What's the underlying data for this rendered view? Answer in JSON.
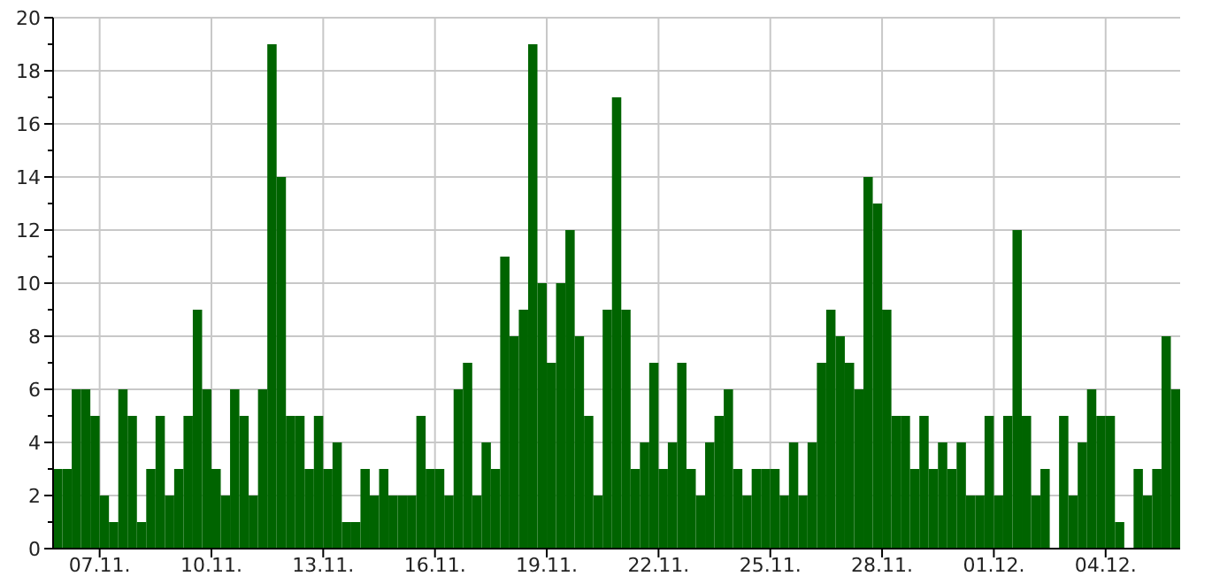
{
  "chart_data": {
    "type": "bar",
    "color": "#006400",
    "grid": true,
    "xlim": [
      "--11-05T18:00",
      "--12-06T00:00"
    ],
    "xticks": [
      {
        "value": "--11-07",
        "label": "07.11."
      },
      {
        "value": "--11-10",
        "label": "10.11."
      },
      {
        "value": "--11-13",
        "label": "13.11."
      },
      {
        "value": "--11-16",
        "label": "16.11."
      },
      {
        "value": "--11-19",
        "label": "19.11."
      },
      {
        "value": "--11-22",
        "label": "22.11."
      },
      {
        "value": "--11-25",
        "label": "25.11."
      },
      {
        "value": "--11-28",
        "label": "28.11."
      },
      {
        "value": "--12-01",
        "label": "01.12."
      },
      {
        "value": "--12-04",
        "label": "04.12."
      }
    ],
    "ylim": [
      0,
      20
    ],
    "yticks": [
      0,
      {
        "value": 1,
        "label": null
      },
      2,
      {
        "value": 3,
        "label": null
      },
      4,
      {
        "value": 5,
        "label": null
      },
      6,
      {
        "value": 7,
        "label": null
      },
      8,
      {
        "value": 9,
        "label": null
      },
      10,
      {
        "value": 11,
        "label": null
      },
      12,
      {
        "value": 13,
        "label": null
      },
      14,
      {
        "value": 15,
        "label": null
      },
      16,
      {
        "value": 17,
        "label": null
      },
      18,
      {
        "value": 19,
        "label": null
      },
      20
    ],
    "x": [
      "--11-05T18:00",
      "--11-06T00:00",
      "--11-06T06:00",
      "--11-06T12:00",
      "--11-06T18:00",
      "--11-07T00:00",
      "--11-07T06:00",
      "--11-07T12:00",
      "--11-07T18:00",
      "--11-08T00:00",
      "--11-08T06:00",
      "--11-08T12:00",
      "--11-08T18:00",
      "--11-09T00:00",
      "--11-09T06:00",
      "--11-09T12:00",
      "--11-09T18:00",
      "--11-10T00:00",
      "--11-10T06:00",
      "--11-10T12:00",
      "--11-10T18:00",
      "--11-11T00:00",
      "--11-11T06:00",
      "--11-11T12:00",
      "--11-11T18:00",
      "--11-12T00:00",
      "--11-12T06:00",
      "--11-12T12:00",
      "--11-12T18:00",
      "--11-13T00:00",
      "--11-13T06:00",
      "--11-13T12:00",
      "--11-13T18:00",
      "--11-14T00:00",
      "--11-14T06:00",
      "--11-14T12:00",
      "--11-14T18:00",
      "--11-15T00:00",
      "--11-15T06:00",
      "--11-15T12:00",
      "--11-15T18:00",
      "--11-16T00:00",
      "--11-16T06:00",
      "--11-16T12:00",
      "--11-16T18:00",
      "--11-17T00:00",
      "--11-17T06:00",
      "--11-17T12:00",
      "--11-17T18:00",
      "--11-18T00:00",
      "--11-18T06:00",
      "--11-18T12:00",
      "--11-18T18:00",
      "--11-19T00:00",
      "--11-19T06:00",
      "--11-19T12:00",
      "--11-19T18:00",
      "--11-20T00:00",
      "--11-20T06:00",
      "--11-20T12:00",
      "--11-20T18:00",
      "--11-21T00:00",
      "--11-21T06:00",
      "--11-21T12:00",
      "--11-21T18:00",
      "--11-22T00:00",
      "--11-22T06:00",
      "--11-22T12:00",
      "--11-22T18:00",
      "--11-23T00:00",
      "--11-23T06:00",
      "--11-23T12:00",
      "--11-23T18:00",
      "--11-24T00:00",
      "--11-24T06:00",
      "--11-24T12:00",
      "--11-24T18:00",
      "--11-25T00:00",
      "--11-25T06:00",
      "--11-25T12:00",
      "--11-25T18:00",
      "--11-26T00:00",
      "--11-26T06:00",
      "--11-26T12:00",
      "--11-26T18:00",
      "--11-27T00:00",
      "--11-27T06:00",
      "--11-27T12:00",
      "--11-27T18:00",
      "--11-28T00:00",
      "--11-28T06:00",
      "--11-28T12:00",
      "--11-28T18:00",
      "--11-29T00:00",
      "--11-29T06:00",
      "--11-29T12:00",
      "--11-29T18:00",
      "--11-30T00:00",
      "--11-30T06:00",
      "--11-30T12:00",
      "--11-30T18:00",
      "--12-01T00:00",
      "--12-01T06:00",
      "--12-01T12:00",
      "--12-01T18:00",
      "--12-02T00:00",
      "--12-02T06:00",
      "--12-02T12:00",
      "--12-02T18:00",
      "--12-03T00:00",
      "--12-03T06:00",
      "--12-03T12:00",
      "--12-03T18:00",
      "--12-04T00:00",
      "--12-04T06:00",
      "--12-04T12:00",
      "--12-04T18:00",
      "--12-05T00:00",
      "--12-05T06:00",
      "--12-05T12:00",
      "--12-05T18:00"
    ],
    "values": [
      3,
      3,
      6,
      6,
      5,
      2,
      1,
      6,
      5,
      1,
      3,
      5,
      2,
      3,
      5,
      9,
      6,
      3,
      2,
      6,
      5,
      2,
      6,
      19,
      14,
      5,
      5,
      3,
      5,
      3,
      4,
      1,
      1,
      3,
      2,
      3,
      2,
      2,
      2,
      5,
      3,
      3,
      2,
      6,
      7,
      2,
      4,
      3,
      11,
      8,
      9,
      19,
      10,
      7,
      10,
      12,
      8,
      5,
      2,
      9,
      17,
      9,
      3,
      4,
      7,
      3,
      4,
      7,
      3,
      2,
      4,
      5,
      6,
      3,
      2,
      3,
      3,
      3,
      2,
      4,
      2,
      4,
      7,
      9,
      8,
      7,
      6,
      14,
      13,
      9,
      5,
      5,
      3,
      5,
      3,
      4,
      3,
      4,
      2,
      2,
      5,
      2,
      5,
      12,
      5,
      2,
      3,
      0,
      5,
      2,
      4,
      6,
      5,
      5,
      1,
      0,
      3,
      2,
      3,
      8,
      6
    ]
  }
}
